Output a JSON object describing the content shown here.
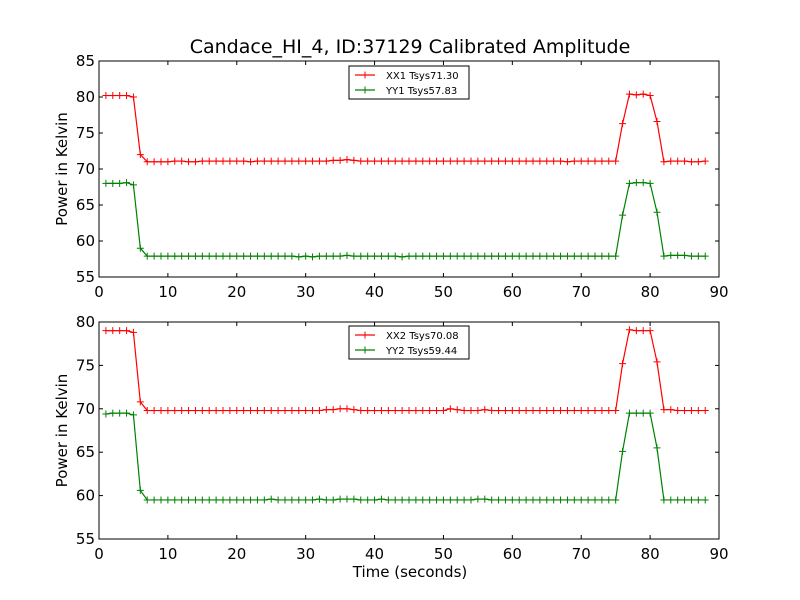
{
  "chart_data": [
    {
      "type": "line",
      "title": "Candace_HI_4, ID:37129 Calibrated Amplitude",
      "xlabel": "",
      "ylabel": "Power in Kelvin",
      "xlim": [
        0,
        90
      ],
      "ylim": [
        55,
        85
      ],
      "xticks": [
        0,
        10,
        20,
        30,
        40,
        50,
        60,
        70,
        80,
        90
      ],
      "yticks": [
        55,
        60,
        65,
        70,
        75,
        80,
        85
      ],
      "grid": false,
      "legend_position": "top-center",
      "x": [
        1,
        2,
        3,
        4,
        5,
        6,
        7,
        8,
        9,
        10,
        11,
        12,
        13,
        14,
        15,
        16,
        17,
        18,
        19,
        20,
        21,
        22,
        23,
        24,
        25,
        26,
        27,
        28,
        29,
        30,
        31,
        32,
        33,
        34,
        35,
        36,
        37,
        38,
        39,
        40,
        41,
        42,
        43,
        44,
        45,
        46,
        47,
        48,
        49,
        50,
        51,
        52,
        53,
        54,
        55,
        56,
        57,
        58,
        59,
        60,
        61,
        62,
        63,
        64,
        65,
        66,
        67,
        68,
        69,
        70,
        71,
        72,
        73,
        74,
        75,
        76,
        77,
        78,
        79,
        80,
        81,
        82,
        83,
        84,
        85,
        86,
        87,
        88
      ],
      "series": [
        {
          "name": "XX1 Tsys71.30",
          "color": "#ff0000",
          "values": [
            80.2,
            80.2,
            80.2,
            80.2,
            80.0,
            72.0,
            71.0,
            71.0,
            71.0,
            71.0,
            71.1,
            71.1,
            71.0,
            71.0,
            71.1,
            71.1,
            71.1,
            71.1,
            71.1,
            71.1,
            71.1,
            71.0,
            71.1,
            71.1,
            71.1,
            71.1,
            71.1,
            71.1,
            71.1,
            71.1,
            71.1,
            71.1,
            71.1,
            71.2,
            71.2,
            71.3,
            71.2,
            71.1,
            71.1,
            71.1,
            71.1,
            71.1,
            71.1,
            71.1,
            71.1,
            71.1,
            71.1,
            71.1,
            71.1,
            71.1,
            71.1,
            71.1,
            71.1,
            71.1,
            71.1,
            71.1,
            71.1,
            71.1,
            71.1,
            71.1,
            71.1,
            71.1,
            71.1,
            71.1,
            71.1,
            71.1,
            71.1,
            71.0,
            71.1,
            71.1,
            71.1,
            71.1,
            71.1,
            71.1,
            71.1,
            76.3,
            80.4,
            80.3,
            80.4,
            80.2,
            76.6,
            71.0,
            71.1,
            71.1,
            71.1,
            71.0,
            71.0,
            71.1
          ]
        },
        {
          "name": "YY1 Tsys57.83",
          "color": "#008000",
          "values": [
            68.0,
            68.0,
            68.0,
            68.1,
            67.8,
            59.0,
            57.9,
            57.9,
            57.9,
            57.9,
            57.9,
            57.9,
            57.9,
            57.9,
            57.9,
            57.9,
            57.9,
            57.9,
            57.9,
            57.9,
            57.9,
            57.9,
            57.9,
            57.9,
            57.9,
            57.9,
            57.9,
            57.9,
            57.8,
            57.9,
            57.8,
            57.9,
            57.9,
            57.9,
            57.9,
            58.0,
            57.9,
            57.9,
            57.9,
            57.9,
            57.9,
            57.9,
            57.9,
            57.8,
            57.9,
            57.9,
            57.9,
            57.9,
            57.9,
            57.9,
            57.9,
            57.9,
            57.9,
            57.9,
            57.9,
            57.9,
            57.9,
            57.9,
            57.9,
            57.9,
            57.9,
            57.9,
            57.9,
            57.9,
            57.9,
            57.9,
            57.9,
            57.9,
            57.9,
            57.9,
            57.9,
            57.9,
            57.9,
            57.9,
            57.9,
            63.6,
            68.0,
            68.1,
            68.1,
            68.0,
            64.0,
            57.9,
            58.0,
            58.0,
            58.0,
            57.9,
            57.9,
            57.9
          ]
        }
      ]
    },
    {
      "type": "line",
      "title": "",
      "xlabel": "Time (seconds)",
      "ylabel": "Power in Kelvin",
      "xlim": [
        0,
        90
      ],
      "ylim": [
        55,
        80
      ],
      "xticks": [
        0,
        10,
        20,
        30,
        40,
        50,
        60,
        70,
        80,
        90
      ],
      "yticks": [
        55,
        60,
        65,
        70,
        75,
        80
      ],
      "grid": false,
      "legend_position": "top-center",
      "x": [
        1,
        2,
        3,
        4,
        5,
        6,
        7,
        8,
        9,
        10,
        11,
        12,
        13,
        14,
        15,
        16,
        17,
        18,
        19,
        20,
        21,
        22,
        23,
        24,
        25,
        26,
        27,
        28,
        29,
        30,
        31,
        32,
        33,
        34,
        35,
        36,
        37,
        38,
        39,
        40,
        41,
        42,
        43,
        44,
        45,
        46,
        47,
        48,
        49,
        50,
        51,
        52,
        53,
        54,
        55,
        56,
        57,
        58,
        59,
        60,
        61,
        62,
        63,
        64,
        65,
        66,
        67,
        68,
        69,
        70,
        71,
        72,
        73,
        74,
        75,
        76,
        77,
        78,
        79,
        80,
        81,
        82,
        83,
        84,
        85,
        86,
        87,
        88
      ],
      "series": [
        {
          "name": "XX2 Tsys70.08",
          "color": "#ff0000",
          "values": [
            79.0,
            79.0,
            79.0,
            79.0,
            78.8,
            70.8,
            69.8,
            69.8,
            69.8,
            69.8,
            69.8,
            69.8,
            69.8,
            69.8,
            69.8,
            69.8,
            69.8,
            69.8,
            69.8,
            69.8,
            69.8,
            69.8,
            69.8,
            69.8,
            69.8,
            69.8,
            69.8,
            69.8,
            69.8,
            69.8,
            69.8,
            69.8,
            69.9,
            69.9,
            70.0,
            70.0,
            69.9,
            69.8,
            69.8,
            69.8,
            69.8,
            69.8,
            69.8,
            69.8,
            69.8,
            69.8,
            69.8,
            69.8,
            69.8,
            69.8,
            70.0,
            69.9,
            69.8,
            69.8,
            69.8,
            69.9,
            69.8,
            69.8,
            69.8,
            69.8,
            69.8,
            69.8,
            69.8,
            69.8,
            69.8,
            69.8,
            69.8,
            69.8,
            69.8,
            69.8,
            69.8,
            69.8,
            69.8,
            69.8,
            69.8,
            75.2,
            79.1,
            79.0,
            79.0,
            79.0,
            75.4,
            69.9,
            69.9,
            69.8,
            69.8,
            69.8,
            69.8,
            69.8
          ]
        },
        {
          "name": "YY2 Tsys59.44",
          "color": "#008000",
          "values": [
            69.4,
            69.5,
            69.5,
            69.5,
            69.3,
            60.6,
            59.5,
            59.5,
            59.5,
            59.5,
            59.5,
            59.5,
            59.5,
            59.5,
            59.5,
            59.5,
            59.5,
            59.5,
            59.5,
            59.5,
            59.5,
            59.5,
            59.5,
            59.5,
            59.6,
            59.5,
            59.5,
            59.5,
            59.5,
            59.5,
            59.5,
            59.6,
            59.5,
            59.5,
            59.6,
            59.6,
            59.6,
            59.5,
            59.5,
            59.5,
            59.6,
            59.5,
            59.5,
            59.5,
            59.5,
            59.5,
            59.5,
            59.5,
            59.5,
            59.5,
            59.5,
            59.5,
            59.5,
            59.5,
            59.6,
            59.6,
            59.5,
            59.5,
            59.5,
            59.5,
            59.5,
            59.5,
            59.5,
            59.5,
            59.5,
            59.5,
            59.5,
            59.5,
            59.5,
            59.5,
            59.5,
            59.5,
            59.5,
            59.5,
            59.5,
            65.1,
            69.5,
            69.5,
            69.5,
            69.5,
            65.5,
            59.5,
            59.5,
            59.5,
            59.5,
            59.5,
            59.5,
            59.5
          ]
        }
      ]
    }
  ]
}
